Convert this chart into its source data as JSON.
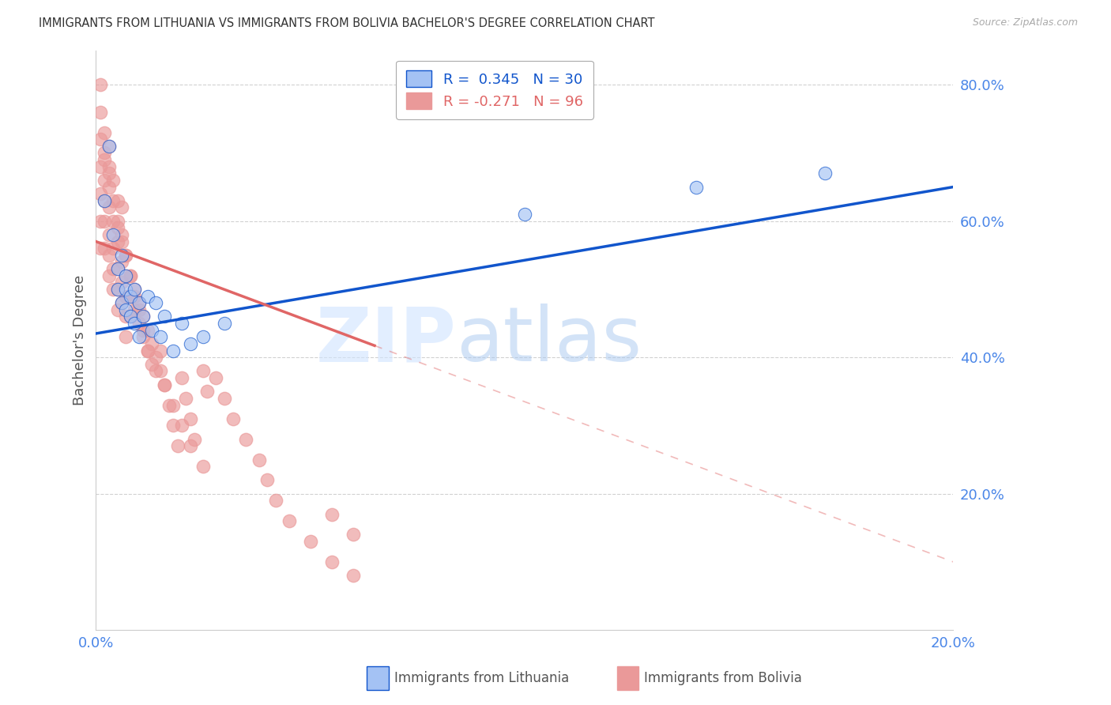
{
  "title": "IMMIGRANTS FROM LITHUANIA VS IMMIGRANTS FROM BOLIVIA BACHELOR'S DEGREE CORRELATION CHART",
  "source": "Source: ZipAtlas.com",
  "ylabel": "Bachelor's Degree",
  "xlim": [
    0.0,
    0.2
  ],
  "ylim": [
    0.0,
    0.85
  ],
  "color_lithuania": "#a4c2f4",
  "color_bolivia": "#ea9999",
  "line_color_lithuania": "#1155cc",
  "line_color_bolivia": "#e06666",
  "background_color": "#ffffff",
  "grid_color": "#cccccc",
  "axis_label_color": "#4a86e8",
  "watermark_color": "#c9daf8",
  "lithuania_x": [
    0.002,
    0.003,
    0.004,
    0.005,
    0.005,
    0.006,
    0.006,
    0.007,
    0.007,
    0.007,
    0.008,
    0.008,
    0.009,
    0.009,
    0.01,
    0.01,
    0.011,
    0.012,
    0.013,
    0.014,
    0.015,
    0.016,
    0.018,
    0.02,
    0.022,
    0.025,
    0.03,
    0.1,
    0.14,
    0.17
  ],
  "lithuania_y": [
    0.63,
    0.71,
    0.58,
    0.53,
    0.5,
    0.55,
    0.48,
    0.52,
    0.5,
    0.47,
    0.49,
    0.46,
    0.5,
    0.45,
    0.48,
    0.43,
    0.46,
    0.49,
    0.44,
    0.48,
    0.43,
    0.46,
    0.41,
    0.45,
    0.42,
    0.43,
    0.45,
    0.61,
    0.65,
    0.67
  ],
  "bolivia_x": [
    0.001,
    0.001,
    0.001,
    0.001,
    0.001,
    0.002,
    0.002,
    0.002,
    0.002,
    0.002,
    0.003,
    0.003,
    0.003,
    0.003,
    0.003,
    0.003,
    0.004,
    0.004,
    0.004,
    0.004,
    0.004,
    0.005,
    0.005,
    0.005,
    0.005,
    0.005,
    0.006,
    0.006,
    0.006,
    0.006,
    0.007,
    0.007,
    0.007,
    0.007,
    0.007,
    0.008,
    0.008,
    0.008,
    0.009,
    0.009,
    0.01,
    0.01,
    0.011,
    0.011,
    0.012,
    0.012,
    0.013,
    0.013,
    0.014,
    0.015,
    0.015,
    0.016,
    0.017,
    0.018,
    0.019,
    0.02,
    0.021,
    0.022,
    0.023,
    0.025,
    0.026,
    0.028,
    0.03,
    0.032,
    0.035,
    0.038,
    0.04,
    0.042,
    0.045,
    0.05,
    0.055,
    0.06,
    0.001,
    0.002,
    0.002,
    0.003,
    0.003,
    0.004,
    0.005,
    0.005,
    0.006,
    0.006,
    0.007,
    0.008,
    0.009,
    0.01,
    0.011,
    0.012,
    0.014,
    0.016,
    0.018,
    0.02,
    0.022,
    0.025,
    0.055,
    0.06,
    0.001
  ],
  "bolivia_y": [
    0.72,
    0.68,
    0.64,
    0.6,
    0.56,
    0.7,
    0.66,
    0.63,
    0.6,
    0.56,
    0.68,
    0.65,
    0.62,
    0.58,
    0.55,
    0.52,
    0.63,
    0.6,
    0.56,
    0.53,
    0.5,
    0.6,
    0.57,
    0.53,
    0.5,
    0.47,
    0.57,
    0.54,
    0.51,
    0.48,
    0.55,
    0.52,
    0.49,
    0.46,
    0.43,
    0.52,
    0.49,
    0.46,
    0.5,
    0.47,
    0.48,
    0.45,
    0.46,
    0.43,
    0.44,
    0.41,
    0.42,
    0.39,
    0.4,
    0.41,
    0.38,
    0.36,
    0.33,
    0.3,
    0.27,
    0.37,
    0.34,
    0.31,
    0.28,
    0.38,
    0.35,
    0.37,
    0.34,
    0.31,
    0.28,
    0.25,
    0.22,
    0.19,
    0.16,
    0.13,
    0.1,
    0.08,
    0.76,
    0.73,
    0.69,
    0.71,
    0.67,
    0.66,
    0.63,
    0.59,
    0.62,
    0.58,
    0.55,
    0.52,
    0.49,
    0.47,
    0.44,
    0.41,
    0.38,
    0.36,
    0.33,
    0.3,
    0.27,
    0.24,
    0.17,
    0.14,
    0.8
  ]
}
